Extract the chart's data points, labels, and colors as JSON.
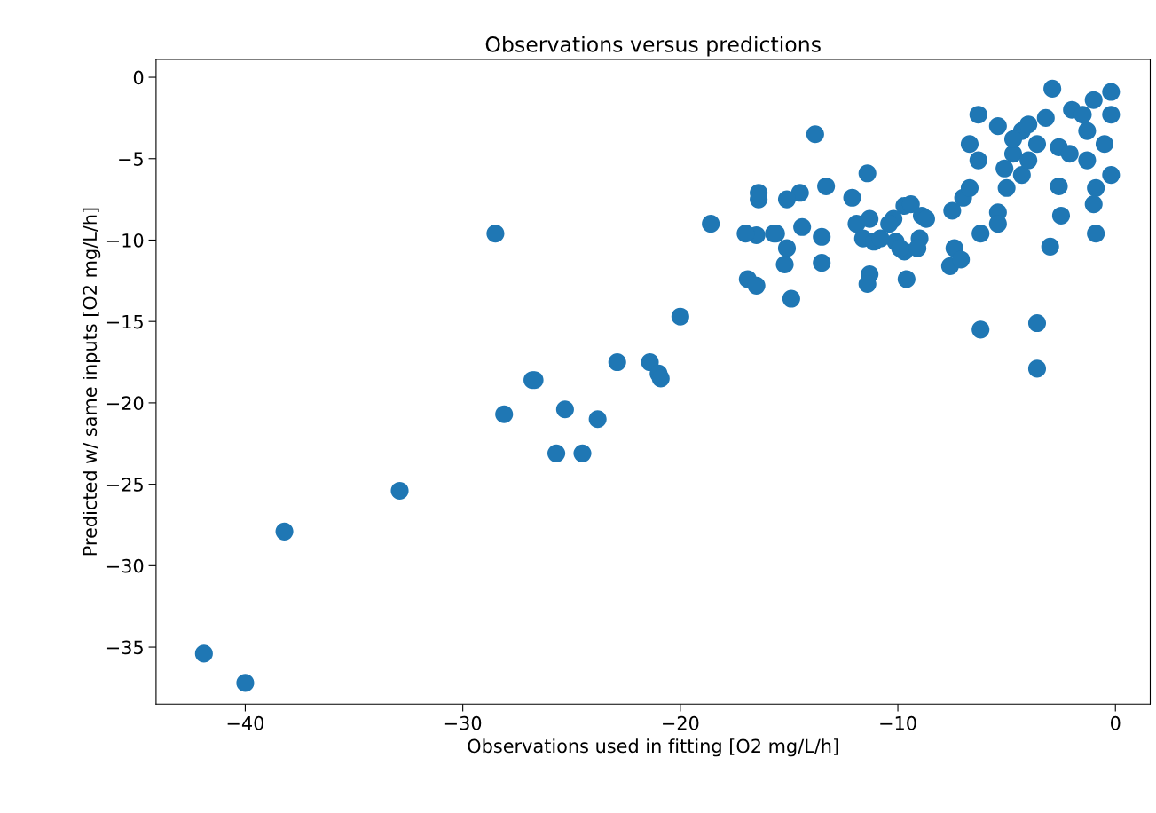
{
  "chart_data": {
    "type": "scatter",
    "title": "Observations versus predictions",
    "xlabel": "Observations used in fitting [O2 mg/L/h]",
    "ylabel": "Predicted w/ same inputs [O2 mg/L/h]",
    "xlim": [
      -44.1,
      1.6
    ],
    "ylim": [
      -38.5,
      1.1
    ],
    "xticks": [
      -40,
      -30,
      -20,
      -10,
      0
    ],
    "yticks": [
      0,
      -5,
      -10,
      -15,
      -20,
      -25,
      -30,
      -35
    ],
    "grid": false,
    "series": [
      {
        "color": "#1f77b4",
        "x": [
          -41.9,
          -40.0,
          -38.2,
          -32.9,
          -28.5,
          -28.1,
          -26.8,
          -26.7,
          -25.7,
          -25.3,
          -24.5,
          -23.8,
          -22.9,
          -21.4,
          -21.0,
          -20.9,
          -20.0,
          -18.6,
          -16.9,
          -16.5,
          -16.5,
          -16.4,
          -16.4,
          -15.7,
          -13.8,
          -11.4,
          -17.0,
          -15.6,
          -14.5,
          -15.1,
          -13.3,
          -14.4,
          -13.5,
          -15.1,
          -15.2,
          -13.5,
          -14.9,
          -12.1,
          -11.9,
          -11.3,
          -11.6,
          -11.1,
          -11.3,
          -11.4,
          -9.7,
          -8.9,
          -10.2,
          -10.1,
          -9.0,
          -9.7,
          -9.6,
          -10.8,
          -2.9,
          -0.2,
          -0.2,
          -6.3,
          -5.4,
          -6.7,
          -6.3,
          -4.3,
          -3.2,
          -2.0,
          -1.3,
          -0.5,
          -3.6,
          -4.7,
          -2.6,
          -4.3,
          -5.0,
          -2.6,
          -0.9,
          -0.2,
          -1.0,
          -5.4,
          -5.4,
          -7.0,
          -7.5,
          -6.7,
          -9.4,
          -10.4,
          -8.7,
          -9.9,
          -9.1,
          -6.2,
          -7.4,
          -7.6,
          -7.1,
          -2.5,
          -3.0,
          -0.9,
          -6.2,
          -3.6,
          -3.6,
          -2.1,
          -1.3,
          -4.7,
          -4.0,
          -1.0,
          -1.5,
          -4.0,
          -5.1
        ],
        "values": [
          -35.4,
          -37.2,
          -27.9,
          -25.4,
          -9.6,
          -20.7,
          -18.6,
          -18.6,
          -23.1,
          -20.4,
          -23.1,
          -21.0,
          -17.5,
          -17.5,
          -18.2,
          -18.5,
          -14.7,
          -9.0,
          -12.4,
          -12.8,
          -9.7,
          -7.5,
          -7.1,
          -9.6,
          -3.5,
          -5.9,
          -9.6,
          -9.6,
          -7.1,
          -7.5,
          -6.7,
          -9.2,
          -9.8,
          -10.5,
          -11.5,
          -11.4,
          -13.6,
          -7.4,
          -9.0,
          -8.7,
          -9.9,
          -10.1,
          -12.1,
          -12.7,
          -7.9,
          -8.5,
          -8.7,
          -10.1,
          -9.9,
          -10.7,
          -12.4,
          -9.9,
          -0.7,
          -0.9,
          -2.3,
          -2.3,
          -3.0,
          -4.1,
          -5.1,
          -3.3,
          -2.5,
          -2.0,
          -3.3,
          -4.1,
          -4.1,
          -4.7,
          -4.3,
          -6.0,
          -6.8,
          -6.7,
          -6.8,
          -6.0,
          -7.8,
          -8.3,
          -9.0,
          -7.4,
          -8.2,
          -6.8,
          -7.8,
          -9.0,
          -8.7,
          -10.5,
          -10.5,
          -9.6,
          -10.5,
          -11.6,
          -11.2,
          -8.5,
          -10.4,
          -9.6,
          -15.5,
          -15.1,
          -17.9,
          -4.7,
          -5.1,
          -3.8,
          -2.9,
          -1.4,
          -2.3,
          -5.1,
          -5.6
        ]
      }
    ]
  }
}
